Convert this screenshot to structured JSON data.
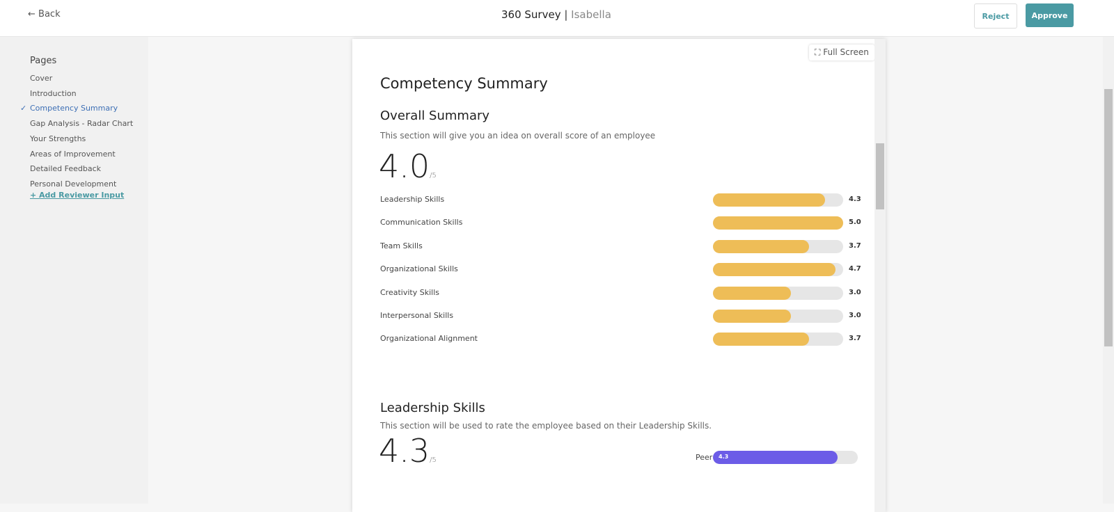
{
  "header": {
    "back": "Back",
    "title": "360 Survey",
    "subject": "Isabella",
    "reject": "Reject",
    "approve": "Approve"
  },
  "sidebar": {
    "heading": "Pages",
    "items": [
      "Cover",
      "Introduction",
      "Competency Summary",
      "Gap Analysis - Radar Chart",
      "Your Strengths",
      "Areas of Improvement",
      "Detailed Feedback",
      "Personal Development"
    ],
    "active": 2,
    "add": "Add Reviewer Input"
  },
  "content": {
    "full_screen": "Full Screen",
    "title": "Competency Summary",
    "scale": {
      "value": 5,
      "label": "/5"
    },
    "overall": {
      "heading": "Overall Summary",
      "description": "This section will give you an idea on overall score of an employee",
      "score": "4.0",
      "skills": {
        "names": [
          "Leadership Skills",
          "Communication Skills",
          "Team Skills",
          "Organizational Skills",
          "Creativity Skills",
          "Interpersonal Skills",
          "Organizational Alignment"
        ],
        "values": [
          4.3,
          5,
          3.7,
          4.7,
          3,
          3,
          3.7
        ],
        "value_labels": [
          "4.3",
          "5.0",
          "3.7",
          "4.7",
          "3.0",
          "3.0",
          "3.7"
        ],
        "color": "#eebd57"
      }
    },
    "leadership": {
      "heading": "Leadership Skills",
      "description": "This section will be used to rate the employee based on their Leadership Skills.",
      "score": "4.3",
      "reviewer": "Peer",
      "value": 4.3,
      "value_label": "4.3",
      "color": "#6c5ce7"
    }
  }
}
